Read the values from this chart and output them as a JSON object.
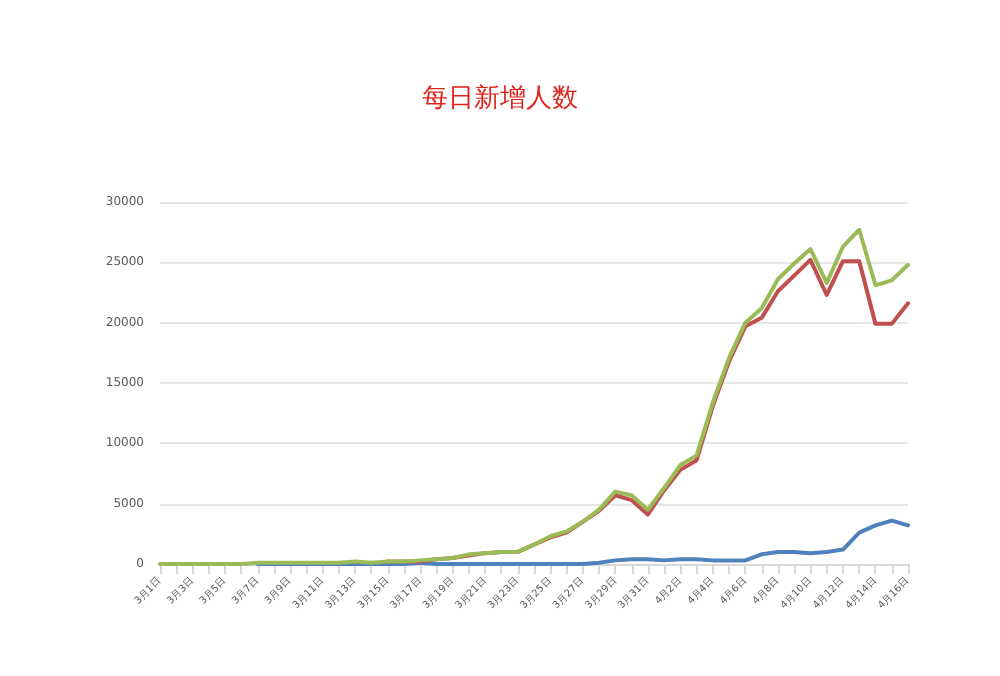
{
  "chart_data": {
    "type": "line",
    "title": "每日新增人数",
    "categories": [
      "3月1日",
      null,
      "3月3日",
      null,
      "3月5日",
      null,
      "3月7日",
      null,
      "3月9日",
      null,
      "3月11日",
      null,
      "3月13日",
      null,
      "3月15日",
      null,
      "3月17日",
      null,
      "3月19日",
      null,
      "3月21日",
      null,
      "3月23日",
      null,
      "3月25日",
      null,
      "3月27日",
      null,
      "3月29日",
      null,
      "3月31日",
      null,
      "4月2日",
      null,
      "4月4日",
      null,
      "4月6日",
      null,
      "4月8日",
      null,
      "4月10日",
      null,
      "4月12日",
      null,
      "4月14日",
      null,
      "4月16日"
    ],
    "series": [
      {
        "color": "#4f81bd",
        "values": [
          null,
          null,
          null,
          null,
          null,
          null,
          0,
          0,
          0,
          0,
          0,
          0,
          0,
          0,
          0,
          0,
          100,
          0,
          0,
          0,
          0,
          0,
          0,
          0,
          0,
          0,
          0,
          100,
          300,
          400,
          400,
          300,
          400,
          400,
          300,
          300,
          300,
          800,
          1000,
          1000,
          900,
          1000,
          1200,
          2600,
          3200,
          3600,
          3200
        ]
      },
      {
        "color": "#c0504d",
        "values": [
          null,
          null,
          null,
          null,
          null,
          null,
          null,
          null,
          null,
          null,
          null,
          null,
          null,
          null,
          200,
          200,
          200,
          400,
          500,
          700,
          900,
          1000,
          1000,
          1600,
          2200,
          2600,
          3500,
          4400,
          5700,
          5300,
          4100,
          6100,
          7800,
          8600,
          13100,
          16800,
          19700,
          20400,
          22600,
          23900,
          25200,
          22300,
          25100,
          25100,
          19900,
          19900,
          21600
        ]
      },
      {
        "color": "#9bbb59",
        "values": [
          0,
          0,
          0,
          0,
          0,
          0,
          100,
          100,
          100,
          100,
          100,
          100,
          200,
          100,
          200,
          200,
          300,
          400,
          500,
          800,
          900,
          1000,
          1000,
          1600,
          2300,
          2700,
          3500,
          4500,
          6000,
          5700,
          4500,
          6300,
          8200,
          9000,
          13400,
          17100,
          20000,
          21200,
          23600,
          24900,
          26100,
          23300,
          26300,
          27700,
          23100,
          23500,
          24800
        ]
      }
    ],
    "ylim": [
      0,
      30000
    ],
    "yticks": [
      0,
      5000,
      10000,
      15000,
      20000,
      25000,
      30000
    ],
    "grid": "y",
    "marker": "none",
    "line_style": "solid"
  }
}
